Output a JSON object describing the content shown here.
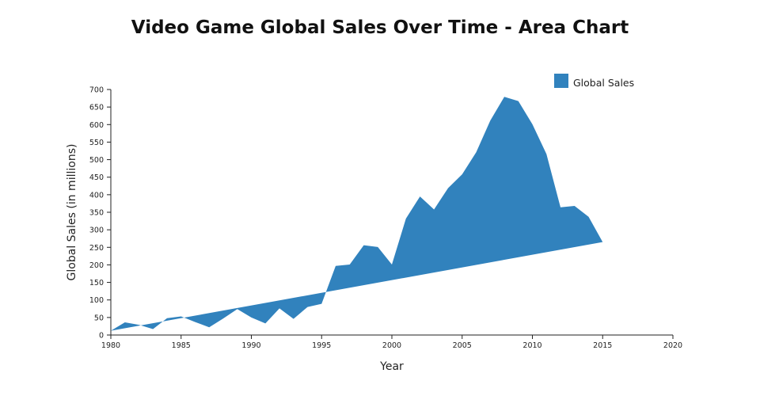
{
  "chart_data": {
    "type": "area",
    "title": "Video Game Global Sales Over Time - Area Chart",
    "xlabel": "Year",
    "ylabel": "Global Sales (in millions)",
    "xlim": [
      1980,
      2020
    ],
    "ylim": [
      0,
      700
    ],
    "x_ticks": [
      1980,
      1985,
      1990,
      1995,
      2000,
      2005,
      2010,
      2015,
      2020
    ],
    "y_ticks": [
      0,
      50,
      100,
      150,
      200,
      250,
      300,
      350,
      400,
      450,
      500,
      550,
      600,
      650,
      700
    ],
    "legend_position": "top-right",
    "series": [
      {
        "name": "Global Sales",
        "color": "#3182bd",
        "upper": {
          "x": [
            1980,
            1981,
            1982,
            1983,
            1984,
            1985,
            1986,
            1987,
            1988,
            1989,
            1990,
            1991,
            1992,
            1993,
            1994,
            1995,
            1996,
            1997,
            1998,
            1999,
            2000,
            2001,
            2002,
            2003,
            2004,
            2005,
            2006,
            2007,
            2008,
            2009,
            2010,
            2011,
            2012,
            2013,
            2014,
            2015
          ],
          "y": [
            12,
            36,
            29,
            17,
            48,
            53,
            37,
            22,
            47,
            74,
            50,
            33,
            76,
            46,
            80,
            89,
            197,
            201,
            256,
            251,
            201,
            332,
            395,
            358,
            419,
            458,
            521,
            611,
            679,
            667,
            601,
            516,
            364,
            368,
            337,
            265
          ]
        },
        "lower": {
          "x": [
            1980,
            2015
          ],
          "y": [
            12,
            265
          ]
        }
      }
    ]
  }
}
